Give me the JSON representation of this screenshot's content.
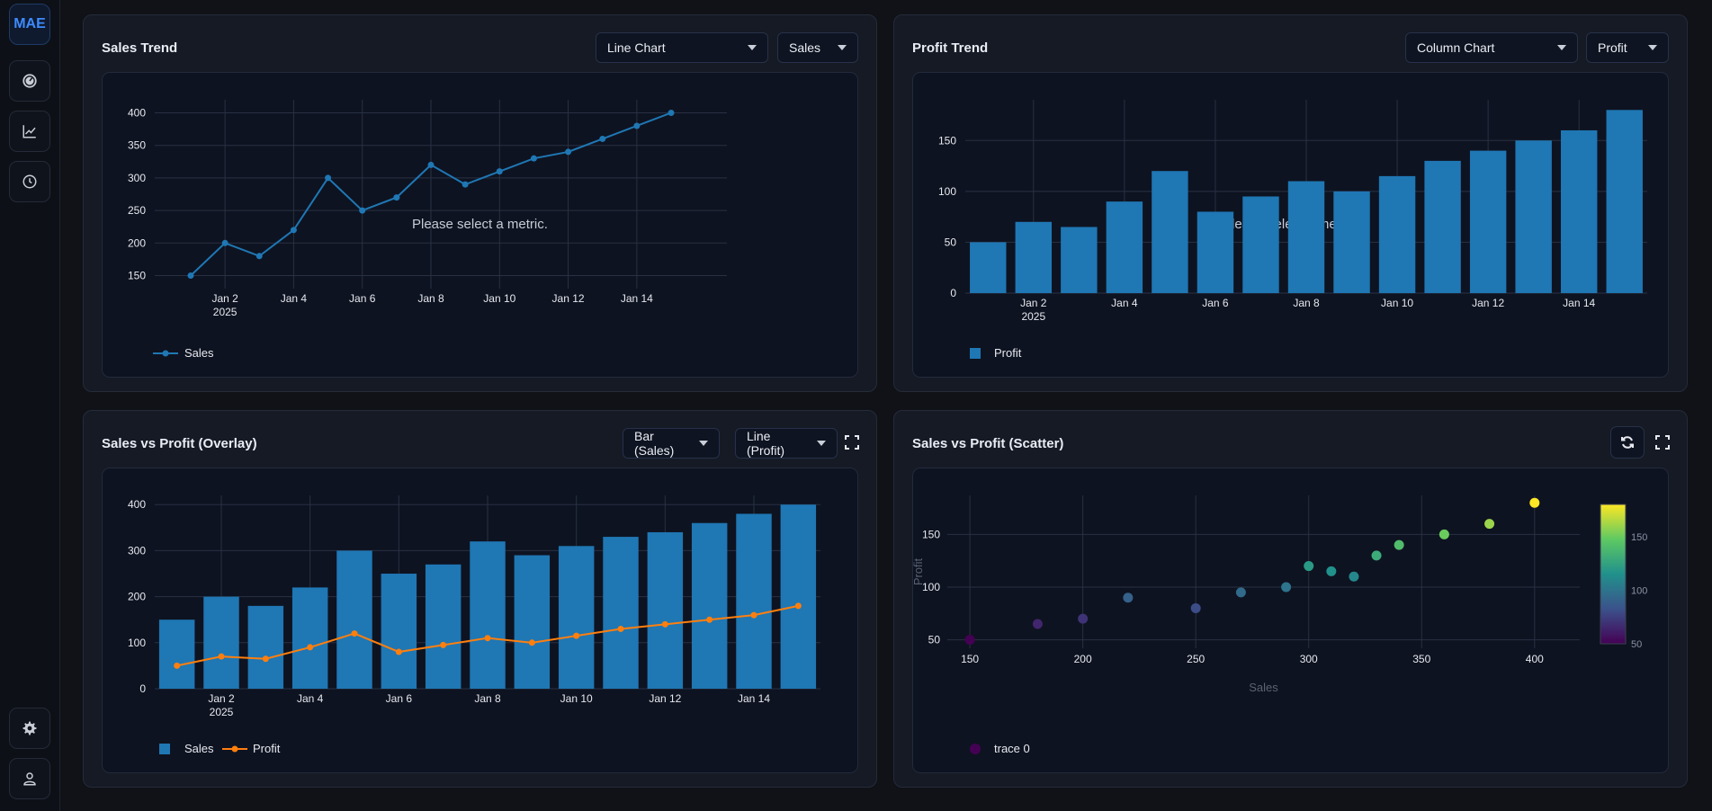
{
  "app": {
    "logo": "MAE"
  },
  "sidebar": {
    "items": [
      {
        "name": "dashboard",
        "icon": "gauge-icon"
      },
      {
        "name": "charts",
        "icon": "line-chart-icon"
      },
      {
        "name": "history",
        "icon": "clock-icon"
      },
      {
        "name": "settings",
        "icon": "gear-icon"
      },
      {
        "name": "user",
        "icon": "user-icon"
      }
    ]
  },
  "colors": {
    "bar": "#1f77b4",
    "line_sales": "#1f77b4",
    "line_profit": "#ff7f0e",
    "grid": "#283042",
    "text": "#e6e9ef"
  },
  "cards": {
    "sales_trend": {
      "title": "Sales Trend",
      "chart_type": "Line Chart",
      "metric": "Sales",
      "watermark": "Please select a metric."
    },
    "profit_trend": {
      "title": "Profit Trend",
      "chart_type": "Column Chart",
      "metric": "Profit",
      "watermark": "Please select a metric."
    },
    "overlay": {
      "title": "Sales vs Profit (Overlay)",
      "bar_select": "Bar (Sales)",
      "line_select": "Line (Profit)"
    },
    "scatter": {
      "title": "Sales vs Profit (Scatter)"
    }
  },
  "chart_data": [
    {
      "id": "sales_trend",
      "type": "line",
      "title": "Sales Trend",
      "x": [
        "Jan 1",
        "Jan 2",
        "Jan 3",
        "Jan 4",
        "Jan 5",
        "Jan 6",
        "Jan 7",
        "Jan 8",
        "Jan 9",
        "Jan 10",
        "Jan 11",
        "Jan 12",
        "Jan 13",
        "Jan 14",
        "Jan 15"
      ],
      "series": [
        {
          "name": "Sales",
          "values": [
            150,
            200,
            180,
            220,
            300,
            250,
            270,
            320,
            290,
            310,
            330,
            340,
            360,
            380,
            400
          ]
        }
      ],
      "x_ticks": [
        "Jan 2",
        "Jan 4",
        "Jan 6",
        "Jan 8",
        "Jan 10",
        "Jan 12",
        "Jan 14"
      ],
      "year_label": "2025",
      "y_ticks": [
        150,
        200,
        250,
        300,
        350,
        400
      ],
      "ylim": [
        130,
        420
      ]
    },
    {
      "id": "profit_trend",
      "type": "bar",
      "title": "Profit Trend",
      "x": [
        "Jan 1",
        "Jan 2",
        "Jan 3",
        "Jan 4",
        "Jan 5",
        "Jan 6",
        "Jan 7",
        "Jan 8",
        "Jan 9",
        "Jan 10",
        "Jan 11",
        "Jan 12",
        "Jan 13",
        "Jan 14",
        "Jan 15"
      ],
      "series": [
        {
          "name": "Profit",
          "values": [
            50,
            70,
            65,
            90,
            120,
            80,
            95,
            110,
            100,
            115,
            130,
            140,
            150,
            160,
            180
          ]
        }
      ],
      "x_ticks": [
        "Jan 2",
        "Jan 4",
        "Jan 6",
        "Jan 8",
        "Jan 10",
        "Jan 12",
        "Jan 14"
      ],
      "year_label": "2025",
      "y_ticks": [
        0,
        50,
        100,
        150
      ],
      "ylim": [
        0,
        190
      ]
    },
    {
      "id": "overlay",
      "type": "bar",
      "title": "Sales vs Profit (Overlay)",
      "x": [
        "Jan 1",
        "Jan 2",
        "Jan 3",
        "Jan 4",
        "Jan 5",
        "Jan 6",
        "Jan 7",
        "Jan 8",
        "Jan 9",
        "Jan 10",
        "Jan 11",
        "Jan 12",
        "Jan 13",
        "Jan 14",
        "Jan 15"
      ],
      "series": [
        {
          "name": "Sales",
          "kind": "bar",
          "values": [
            150,
            200,
            180,
            220,
            300,
            250,
            270,
            320,
            290,
            310,
            330,
            340,
            360,
            380,
            400
          ]
        },
        {
          "name": "Profit",
          "kind": "line",
          "values": [
            50,
            70,
            65,
            90,
            120,
            80,
            95,
            110,
            100,
            115,
            130,
            140,
            150,
            160,
            180
          ]
        }
      ],
      "x_ticks": [
        "Jan 2",
        "Jan 4",
        "Jan 6",
        "Jan 8",
        "Jan 10",
        "Jan 12",
        "Jan 14"
      ],
      "year_label": "2025",
      "y_ticks": [
        0,
        100,
        200,
        300,
        400
      ],
      "ylim": [
        0,
        420
      ]
    },
    {
      "id": "scatter",
      "type": "scatter",
      "title": "Sales vs Profit (Scatter)",
      "xlabel": "Sales",
      "ylabel": "Profit",
      "x": [
        150,
        200,
        180,
        220,
        300,
        250,
        270,
        320,
        290,
        310,
        330,
        340,
        360,
        380,
        400
      ],
      "y": [
        50,
        70,
        65,
        90,
        120,
        80,
        95,
        110,
        100,
        115,
        130,
        140,
        150,
        160,
        180
      ],
      "legend": "trace 0",
      "x_ticks": [
        150,
        200,
        250,
        300,
        350,
        400
      ],
      "y_ticks": [
        50,
        100,
        150
      ],
      "xlim": [
        140,
        420
      ],
      "ylim": [
        42,
        187
      ],
      "colorbar_ticks": [
        50,
        100,
        150
      ],
      "colorbar_range": [
        50,
        180
      ]
    }
  ]
}
